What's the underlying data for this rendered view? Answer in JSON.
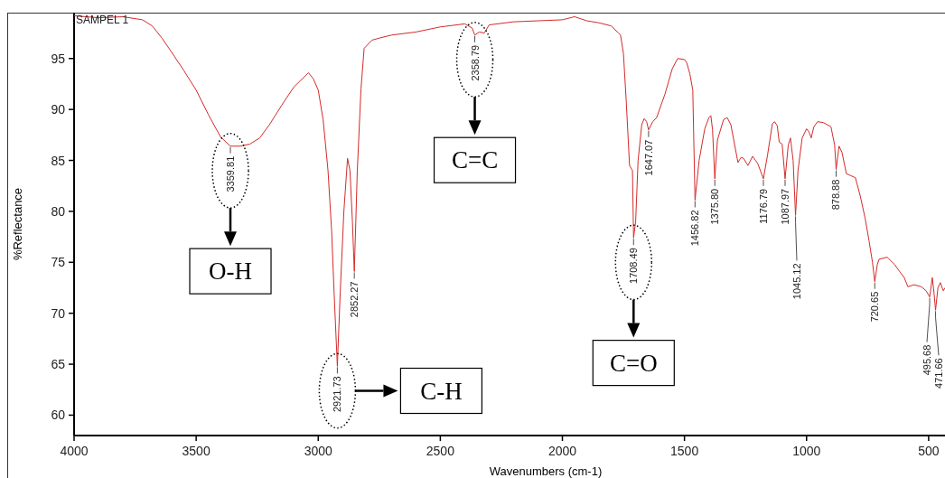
{
  "chart_data": {
    "type": "line",
    "xlabel": "Wavenumbers (cm-1)",
    "ylabel": "%Reflectance",
    "xlim": [
      4000,
      433
    ],
    "ylim": [
      58,
      99.5
    ],
    "xticks": [
      4000,
      3500,
      3000,
      2500,
      2000,
      1500,
      1000,
      500
    ],
    "yticks": [
      60,
      65,
      70,
      75,
      80,
      85,
      90,
      95
    ],
    "grid": false,
    "series": [
      {
        "color": "#d42a2a",
        "x": [
          4000,
          3900,
          3800,
          3720,
          3680,
          3640,
          3600,
          3550,
          3500,
          3450,
          3400,
          3359.81,
          3320,
          3280,
          3240,
          3200,
          3150,
          3100,
          3040,
          3020,
          3000,
          2980,
          2960,
          2945,
          2935,
          2921.73,
          2910,
          2895,
          2880,
          2870,
          2860,
          2852.27,
          2840,
          2825,
          2812,
          2780,
          2750,
          2700,
          2600,
          2500,
          2400,
          2370,
          2358.79,
          2340,
          2320,
          2300,
          2200,
          2100,
          2000,
          1950,
          1900,
          1850,
          1800,
          1770,
          1762,
          1750,
          1739,
          1725,
          1713,
          1708.49,
          1700,
          1690,
          1675,
          1665,
          1655,
          1647.07,
          1630,
          1614,
          1580,
          1550,
          1528,
          1500,
          1491,
          1478,
          1466,
          1456.82,
          1440,
          1417,
          1400,
          1392,
          1385,
          1375.8,
          1365,
          1340,
          1325,
          1310,
          1281,
          1268,
          1258,
          1240,
          1221,
          1200,
          1176.79,
          1160,
          1140,
          1131,
          1120,
          1112,
          1100,
          1087.97,
          1075,
          1066,
          1055,
          1045.12,
          1035,
          1018,
          1000,
          990,
          981,
          970,
          955,
          930,
          900,
          885,
          878.88,
          867,
          855,
          837,
          800,
          780,
          760,
          744,
          730,
          720.65,
          710,
          703,
          670,
          640,
          622,
          600,
          585,
          560,
          530,
          510,
          495.68,
          485,
          478,
          471.66,
          462,
          452,
          440,
          433
        ],
        "values": [
          99.2,
          99.0,
          99.1,
          98.8,
          98.2,
          97.0,
          95.6,
          93.8,
          91.9,
          89.5,
          87.3,
          86.4,
          86.4,
          86.6,
          87.2,
          88.5,
          90.4,
          92.2,
          93.6,
          93.0,
          91.9,
          89,
          84,
          78,
          72,
          64.8,
          72,
          80,
          85.2,
          84,
          79,
          74.1,
          84,
          92,
          96.0,
          96.8,
          97.0,
          97.3,
          97.6,
          98.1,
          98.4,
          98.0,
          97.3,
          97.6,
          97.5,
          98.3,
          98.6,
          98.7,
          98.8,
          99.1,
          98.7,
          98.5,
          98.2,
          97.5,
          97.3,
          95.5,
          91.0,
          84.5,
          84.0,
          77.4,
          79,
          85,
          88.5,
          89.1,
          88.8,
          88.0,
          88.8,
          89.2,
          91.5,
          94,
          95.0,
          94.9,
          94.6,
          93.5,
          91.9,
          81.1,
          85,
          88.1,
          89.2,
          89.4,
          88,
          83.2,
          87,
          89.0,
          89.2,
          88.5,
          84.8,
          85.3,
          85.2,
          84.5,
          85.4,
          84.7,
          83.2,
          85.5,
          88.6,
          88.8,
          88.4,
          86.8,
          86.6,
          83.2,
          86.5,
          87.2,
          85,
          79.6,
          84,
          87.2,
          88.1,
          87.8,
          87.2,
          88.3,
          88.8,
          88.7,
          88.3,
          86.5,
          84.1,
          86.4,
          85.8,
          83.7,
          83.3,
          81.5,
          79.3,
          77.1,
          75,
          73.1,
          74.8,
          75.3,
          75.5,
          74.8,
          74.2,
          73.5,
          72.6,
          72.8,
          72.6,
          72.2,
          71.6,
          73.5,
          72,
          70.3,
          72.5,
          73.0,
          72.2,
          72.5
        ]
      }
    ],
    "annotations": [
      "SAMPEL 1",
      {
        "text": "3359.81",
        "x": 3359.81,
        "y": 86.4
      },
      {
        "text": "2358.79",
        "x": 2358.79,
        "y": 97.3
      },
      {
        "text": "2921.73",
        "x": 2921.73,
        "y": 64.8
      },
      {
        "text": "1708.49",
        "x": 1708.49,
        "y": 77.4
      },
      {
        "text": "2852.27",
        "x": 2852.27,
        "y": 74.1
      },
      {
        "text": "1647.07",
        "x": 1647.07,
        "y": 88.0
      },
      {
        "text": "1456.82",
        "x": 1456.82,
        "y": 81.1
      },
      {
        "text": "1375.80",
        "x": 1375.8,
        "y": 83.2
      },
      {
        "text": "1176.79",
        "x": 1176.79,
        "y": 83.2
      },
      {
        "text": "1087.97",
        "x": 1087.97,
        "y": 83.2
      },
      {
        "text": "1045.12",
        "x": 1045.12,
        "y": 79.6
      },
      {
        "text": "878.88",
        "x": 878.88,
        "y": 84.1
      },
      {
        "text": "720.65",
        "x": 720.65,
        "y": 73.1
      },
      {
        "text": "495.68",
        "x": 495.68,
        "y": 71.6
      },
      {
        "text": "471.66",
        "x": 471.66,
        "y": 70.3
      },
      "O-H",
      "C=C",
      "C-H",
      "C=O"
    ]
  }
}
